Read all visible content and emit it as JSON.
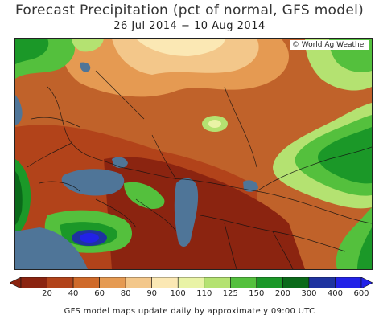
{
  "title": "Forecast Precipitation (pct of normal, GFS model)",
  "subtitle": "26 Jul 2014 − 10 Aug 2014",
  "credit": "© World Ag Weather",
  "legend": {
    "ticks": [
      "20",
      "40",
      "60",
      "80",
      "90",
      "100",
      "110",
      "125",
      "150",
      "200",
      "300",
      "400",
      "600"
    ],
    "colors": [
      "#8b2410",
      "#b2431a",
      "#cf6a2a",
      "#e59a52",
      "#f3c78a",
      "#fbe8b4",
      "#e9f3a6",
      "#b4e271",
      "#54c03d",
      "#1b9828",
      "#0a6a1a",
      "#1e33a0",
      "#2222e8"
    ]
  },
  "footer": "GFS model maps update daily by approximately 09:00 UTC"
}
